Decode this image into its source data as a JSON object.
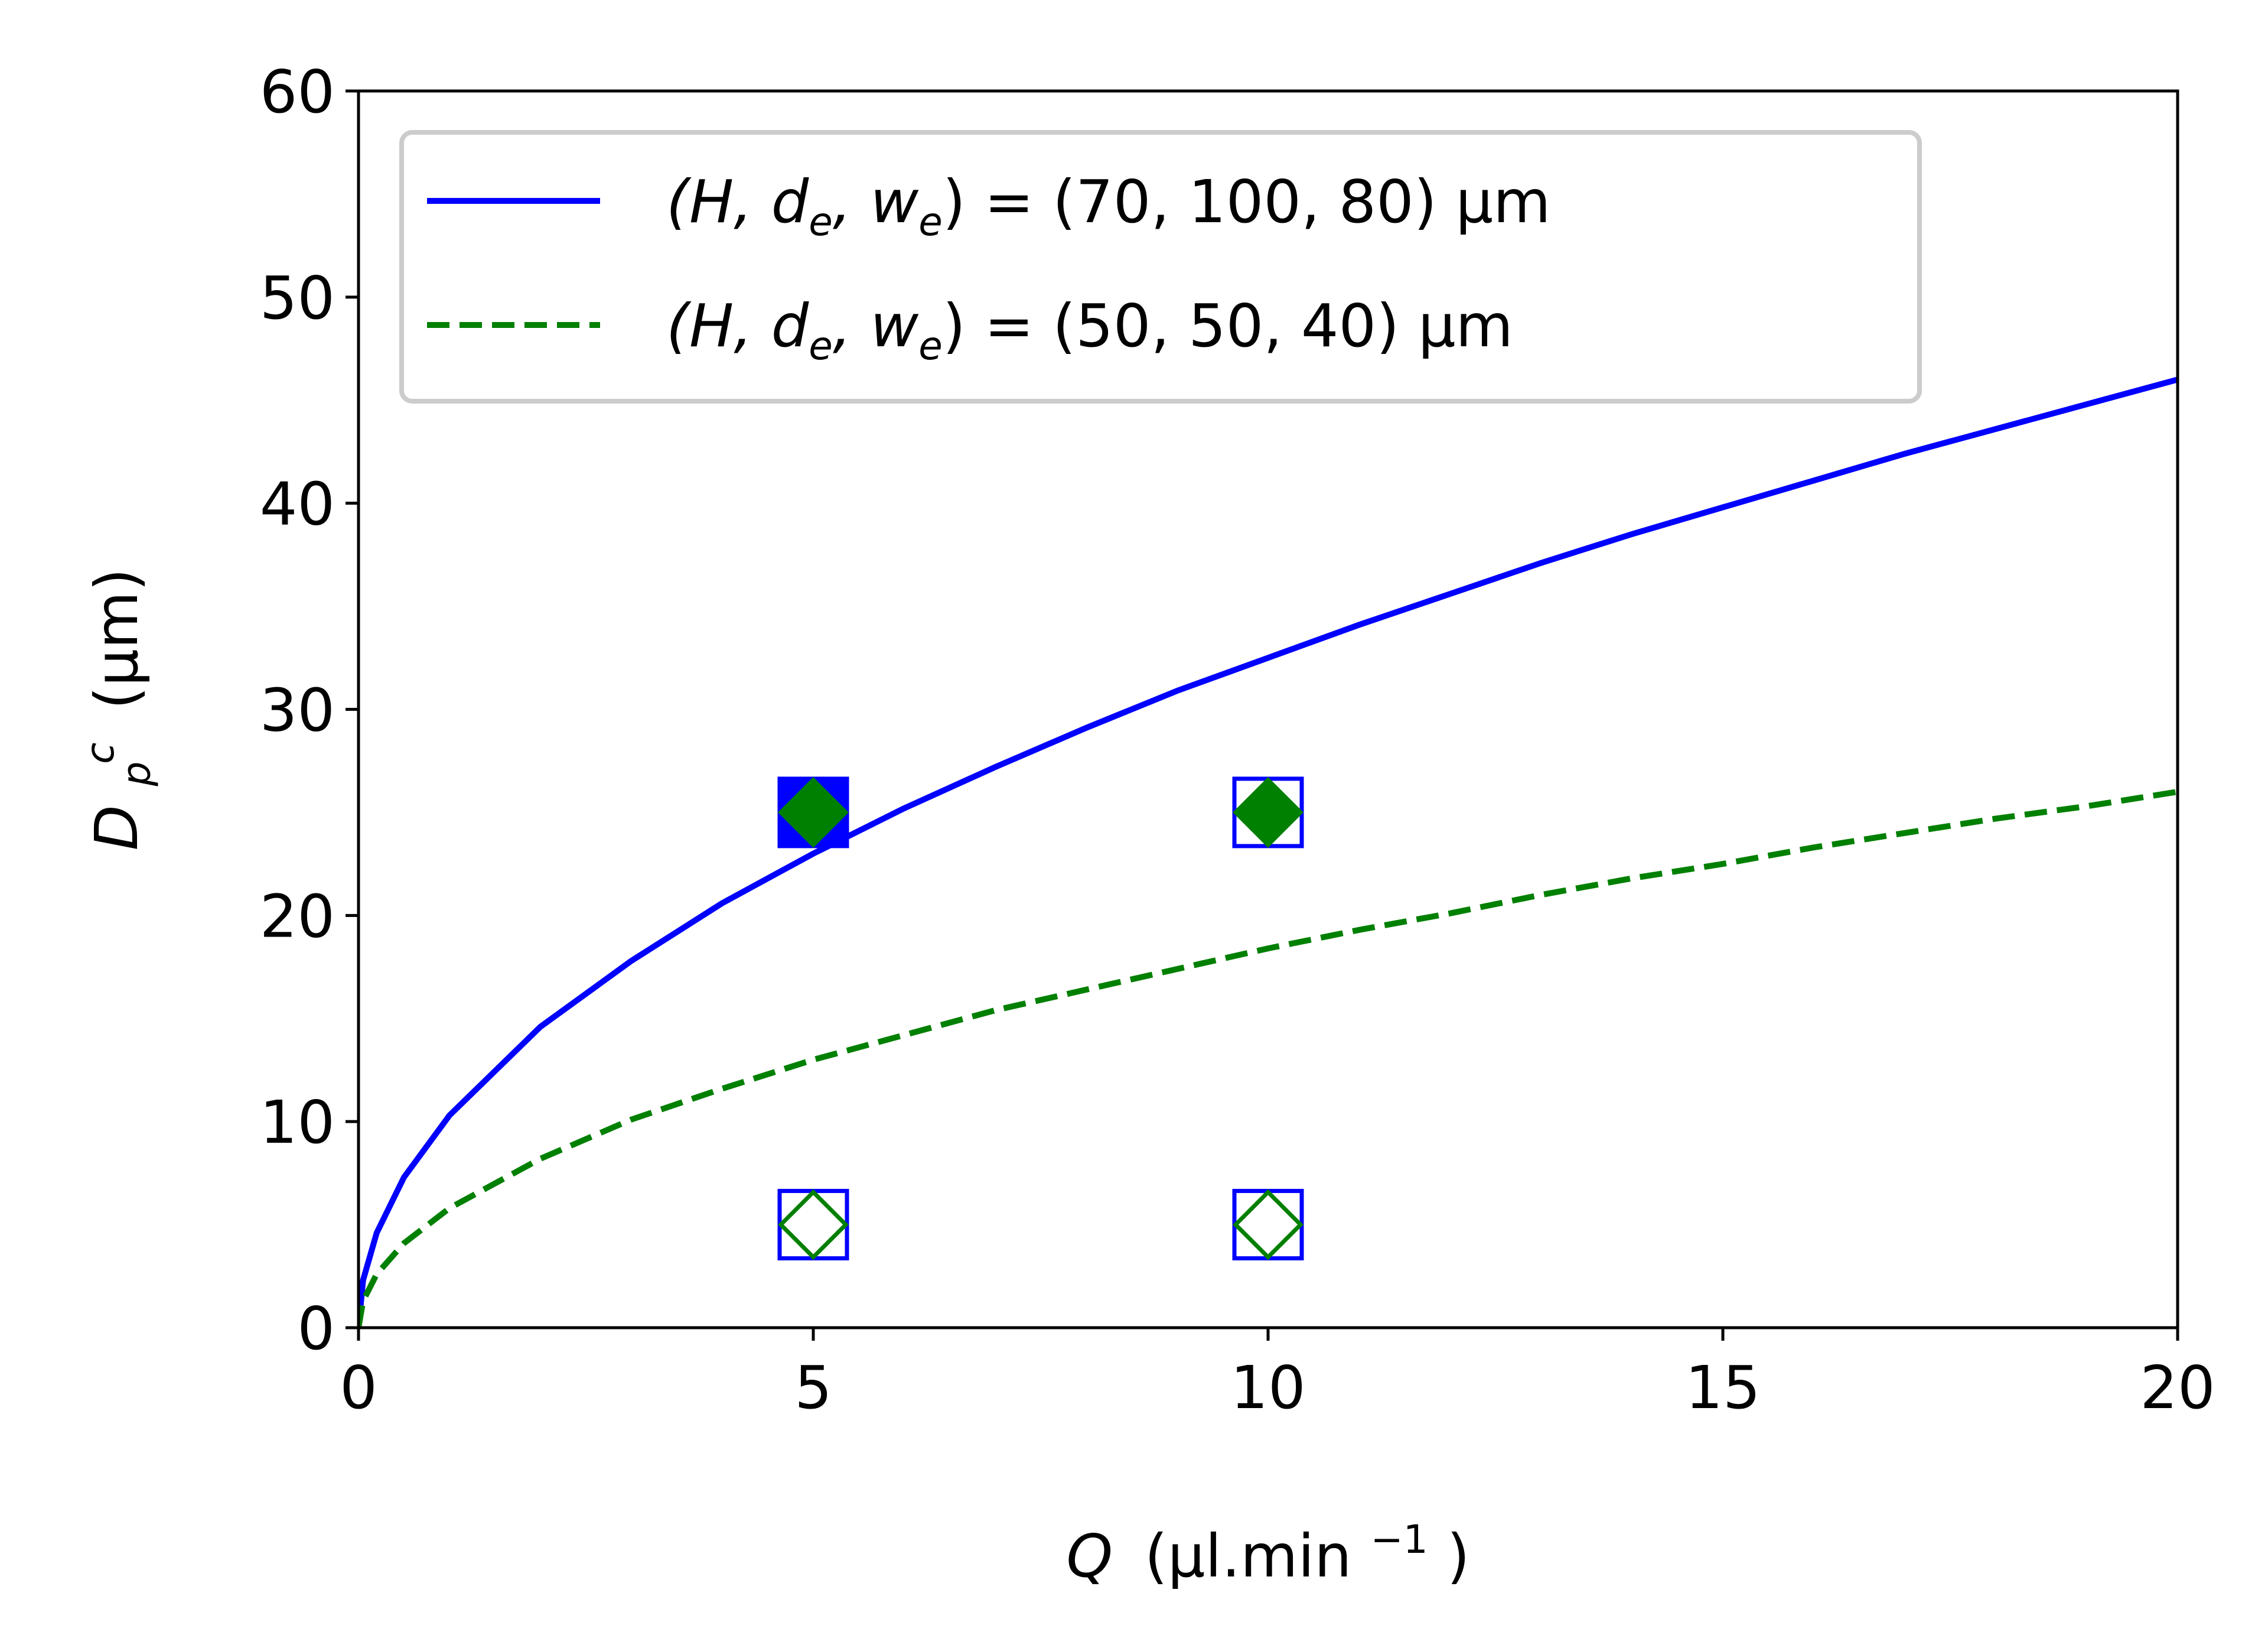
{
  "chart_data": {
    "type": "line",
    "title": "",
    "xlabel": {
      "main": "Q",
      "unit_pre": "(μl.min",
      "unit_sup": "−1",
      "unit_post": ")"
    },
    "ylabel": {
      "main": "D",
      "sub": "p",
      "sup": "c",
      "unit": "(μm)"
    },
    "xlim": [
      0,
      20
    ],
    "ylim": [
      0,
      60
    ],
    "xticks": [
      0,
      5,
      10,
      15,
      20
    ],
    "yticks": [
      0,
      10,
      20,
      30,
      40,
      50,
      60
    ],
    "grid": false,
    "legend_position": "top-left",
    "series": [
      {
        "name": {
          "prefix": "(H, d",
          "sub1": "e",
          "mid": ", w",
          "sub2": "e",
          "suffix": ") =  (70, 100, 80) μm"
        },
        "style": "solid",
        "color": "#0000ff",
        "x": [
          0,
          0.05,
          0.2,
          0.5,
          1,
          2,
          3,
          4,
          5,
          6,
          7,
          8,
          9,
          10,
          11,
          12,
          13,
          14,
          15,
          16,
          17,
          18,
          19,
          20
        ],
        "y": [
          0,
          2.3,
          4.6,
          7.3,
          10.3,
          14.6,
          17.8,
          20.6,
          23.0,
          25.2,
          27.2,
          29.1,
          30.9,
          32.5,
          34.1,
          35.6,
          37.1,
          38.5,
          39.8,
          41.1,
          42.4,
          43.6,
          44.8,
          46.0
        ]
      },
      {
        "name": {
          "prefix": "(H, d",
          "sub1": "e",
          "mid": ", w",
          "sub2": "e",
          "suffix": ") =  (50, 50, 40) μm"
        },
        "style": "dashed",
        "color": "#008000",
        "x": [
          0,
          0.05,
          0.2,
          0.5,
          1,
          2,
          3,
          4,
          5,
          6,
          7,
          8,
          9,
          10,
          11,
          12,
          13,
          14,
          15,
          16,
          17,
          18,
          19,
          20
        ],
        "y": [
          0,
          1.3,
          2.6,
          4.1,
          5.8,
          8.2,
          10.1,
          11.6,
          13.0,
          14.2,
          15.4,
          16.4,
          17.4,
          18.4,
          19.3,
          20.1,
          21.0,
          21.8,
          22.5,
          23.3,
          24.0,
          24.7,
          25.3,
          26.0
        ]
      }
    ],
    "markers": [
      {
        "shape": "square",
        "filled": true,
        "color": "#0000ff",
        "x": 5,
        "y": 25
      },
      {
        "shape": "diamond",
        "filled": true,
        "color": "#008000",
        "x": 5,
        "y": 25
      },
      {
        "shape": "square",
        "filled": false,
        "color": "#0000ff",
        "x": 10,
        "y": 25
      },
      {
        "shape": "diamond",
        "filled": true,
        "color": "#008000",
        "x": 10,
        "y": 25
      },
      {
        "shape": "square",
        "filled": false,
        "color": "#0000ff",
        "x": 5,
        "y": 5
      },
      {
        "shape": "diamond",
        "filled": false,
        "color": "#008000",
        "x": 5,
        "y": 5
      },
      {
        "shape": "square",
        "filled": false,
        "color": "#0000ff",
        "x": 10,
        "y": 5
      },
      {
        "shape": "diamond",
        "filled": false,
        "color": "#008000",
        "x": 10,
        "y": 5
      }
    ]
  }
}
